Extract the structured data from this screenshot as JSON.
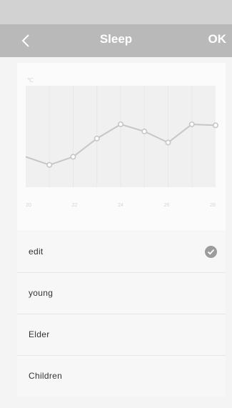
{
  "nav": {
    "title": "Sleep",
    "ok_label": "OK",
    "back_icon": "chevron-left-icon"
  },
  "chart_data": {
    "type": "line",
    "unit_label": "℃",
    "x_ticks": [
      "20",
      "22",
      "24",
      "26",
      "28"
    ],
    "values": [
      3.0,
      2.2,
      3.0,
      4.8,
      6.2,
      5.5,
      4.4,
      6.2,
      6.1
    ],
    "ylim": [
      0,
      10
    ],
    "grid": true,
    "colors": {
      "line": "#c6c6c6",
      "point_fill": "#ffffff",
      "grid": "#e7e7e7",
      "plot_bg": "#f0f0f0"
    }
  },
  "modes": [
    {
      "label": "edit",
      "selected": true
    },
    {
      "label": "young",
      "selected": false
    },
    {
      "label": "Elder",
      "selected": false
    },
    {
      "label": "Children",
      "selected": false
    }
  ],
  "colors": {
    "nav_bar": "#b9b9b9",
    "check": "#9c9c9c"
  }
}
